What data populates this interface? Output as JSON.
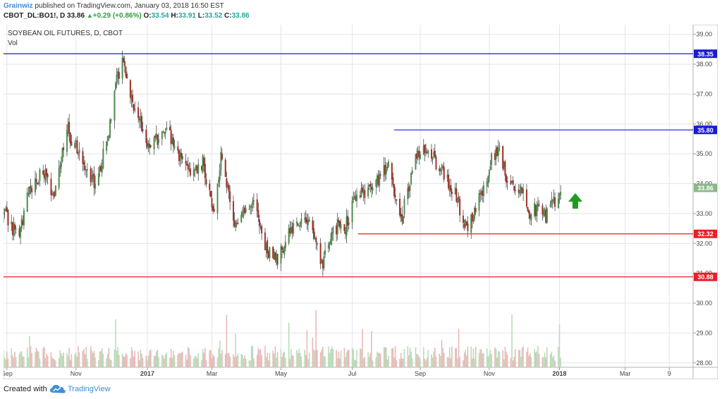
{
  "header": {
    "user": "Grainwiz",
    "published_text": " published on TradingView.com, January 03, 2018 16:50 EST",
    "symbol": "CBOT_DL:BO1!, D",
    "last": "33.86",
    "change": "+0.29 (+0.86%)",
    "o_label": "O:",
    "o_value": "33.54",
    "h_label": "H:",
    "h_value": "33.91",
    "l_label": "L:",
    "l_value": "33.52",
    "c_label": "C:",
    "c_value": "33.86"
  },
  "chart_data": {
    "type": "candlestick",
    "title": "SOYBEAN OIL FUTURES, D, CBOT",
    "subtitle": "Vol",
    "ylim": [
      27.9,
      39.3
    ],
    "y_ticks": [
      "39.00",
      "38.00",
      "37.00",
      "36.00",
      "35.00",
      "34.00",
      "33.00",
      "32.00",
      "31.00",
      "30.00",
      "29.00",
      "28.00"
    ],
    "x_ticks": [
      {
        "label": "Sep",
        "date": "2016-09-01"
      },
      {
        "label": "Nov",
        "date": "2016-11-01"
      },
      {
        "label": "2017",
        "date": "2017-01-03"
      },
      {
        "label": "Mar",
        "date": "2017-03-01"
      },
      {
        "label": "May",
        "date": "2017-05-01"
      },
      {
        "label": "Jul",
        "date": "2017-07-03"
      },
      {
        "label": "Sep",
        "date": "2017-09-01"
      },
      {
        "label": "Nov",
        "date": "2017-11-01"
      },
      {
        "label": "2018",
        "date": "2018-01-02"
      },
      {
        "label": "Mar",
        "date": "2018-03-01"
      },
      {
        "label": "9",
        "date": "2018-04-09"
      }
    ],
    "x_range": [
      "2016-08-29",
      "2018-04-30"
    ],
    "price_path": [
      [
        "2016-08-29",
        33.0
      ],
      [
        "2016-09-12",
        32.2
      ],
      [
        "2016-09-20",
        33.7
      ],
      [
        "2016-10-03",
        34.4
      ],
      [
        "2016-10-12",
        33.6
      ],
      [
        "2016-10-24",
        35.8
      ],
      [
        "2016-11-07",
        34.9
      ],
      [
        "2016-11-18",
        33.9
      ],
      [
        "2016-11-29",
        35.5
      ],
      [
        "2016-12-05",
        37.3
      ],
      [
        "2016-12-12",
        38.0
      ],
      [
        "2016-12-19",
        37.0
      ],
      [
        "2017-01-05",
        35.3
      ],
      [
        "2017-01-19",
        35.8
      ],
      [
        "2017-01-27",
        35.4
      ],
      [
        "2017-02-09",
        34.2
      ],
      [
        "2017-02-21",
        34.7
      ],
      [
        "2017-03-02",
        33.1
      ],
      [
        "2017-03-09",
        34.8
      ],
      [
        "2017-03-23",
        32.4
      ],
      [
        "2017-04-06",
        33.6
      ],
      [
        "2017-04-17",
        31.8
      ],
      [
        "2017-04-27",
        31.4
      ],
      [
        "2017-05-11",
        32.6
      ],
      [
        "2017-05-23",
        33.0
      ],
      [
        "2017-06-02",
        31.8
      ],
      [
        "2017-06-07",
        31.2
      ],
      [
        "2017-06-16",
        32.6
      ],
      [
        "2017-06-26",
        32.5
      ],
      [
        "2017-07-06",
        33.5
      ],
      [
        "2017-07-20",
        34.0
      ],
      [
        "2017-08-04",
        34.5
      ],
      [
        "2017-08-15",
        32.8
      ],
      [
        "2017-08-28",
        34.8
      ],
      [
        "2017-09-06",
        35.3
      ],
      [
        "2017-09-18",
        34.5
      ],
      [
        "2017-10-02",
        33.6
      ],
      [
        "2017-10-13",
        32.5
      ],
      [
        "2017-10-24",
        33.5
      ],
      [
        "2017-11-03",
        34.9
      ],
      [
        "2017-11-10",
        35.1
      ],
      [
        "2017-11-16",
        34.3
      ],
      [
        "2017-11-29",
        33.8
      ],
      [
        "2017-12-08",
        33.0
      ],
      [
        "2017-12-15",
        33.2
      ],
      [
        "2017-12-22",
        32.9
      ],
      [
        "2018-01-03",
        33.86
      ]
    ],
    "horizontal_lines": [
      {
        "value": 38.35,
        "label": "38.35",
        "color": "#1a1ad1",
        "from_date": "2016-08-29"
      },
      {
        "value": 35.8,
        "label": "35.80",
        "color": "#1a1ad1",
        "from_date": "2017-08-09"
      },
      {
        "value": 32.32,
        "label": "32.32",
        "color": "#e81f25",
        "from_date": "2017-07-08"
      },
      {
        "value": 30.88,
        "label": "30.88",
        "color": "#e81f25",
        "from_date": "2016-08-29"
      }
    ],
    "last_price": {
      "value": 33.86,
      "label": "33.86",
      "color": "#8bb888"
    },
    "annotation": {
      "type": "up-arrow",
      "color": "#1f9c1f",
      "date": "2018-01-16",
      "value": 33.4
    },
    "colors": {
      "up": "#4d8c4d",
      "down": "#9e3026",
      "volume_up": "#b9dcb9",
      "volume_down": "#e9b9b9",
      "grid": "#e4e4e4"
    }
  },
  "footer": {
    "created_with": "Created with",
    "brand": "TradingView",
    "logo_icon": "tradingview-cloud-icon"
  }
}
